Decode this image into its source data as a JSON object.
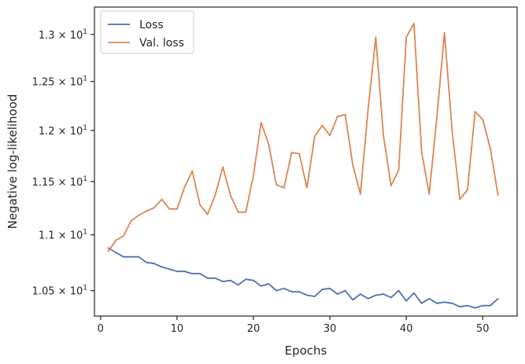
{
  "chart_data": {
    "type": "line",
    "xlabel": "Epochs",
    "ylabel": "Negative log-likelihood",
    "xlim": [
      -0.8,
      54.5
    ],
    "ylim": [
      10.28,
      13.3
    ],
    "y_scale": "log",
    "x_ticks": [
      0,
      10,
      20,
      30,
      40,
      50
    ],
    "x_tick_labels": [
      "0",
      "10",
      "20",
      "30",
      "40",
      "50"
    ],
    "y_ticks": [
      10.5,
      11.0,
      11.5,
      12.0,
      12.5,
      13.0
    ],
    "y_tick_labels": [
      {
        "mant": "1.05",
        "times": "×",
        "base": "10",
        "exp": "1"
      },
      {
        "mant": "1.1",
        "times": "×",
        "base": "10",
        "exp": "1"
      },
      {
        "mant": "1.15",
        "times": "×",
        "base": "10",
        "exp": "1"
      },
      {
        "mant": "1.2",
        "times": "×",
        "base": "10",
        "exp": "1"
      },
      {
        "mant": "1.25",
        "times": "×",
        "base": "10",
        "exp": "1"
      },
      {
        "mant": "1.3",
        "times": "×",
        "base": "10",
        "exp": "1"
      }
    ],
    "grid": false,
    "legend_position": "upper-left",
    "x": [
      1,
      2,
      3,
      4,
      5,
      6,
      7,
      8,
      9,
      10,
      11,
      12,
      13,
      14,
      15,
      16,
      17,
      18,
      19,
      20,
      21,
      22,
      23,
      24,
      25,
      26,
      27,
      28,
      29,
      30,
      31,
      32,
      33,
      34,
      35,
      36,
      37,
      38,
      39,
      40,
      41,
      42,
      43,
      44,
      45,
      46,
      47,
      48,
      49,
      50,
      51,
      52
    ],
    "series": [
      {
        "name": "Loss",
        "color": "#4c72b0",
        "values": [
          10.88,
          10.84,
          10.8,
          10.8,
          10.8,
          10.75,
          10.74,
          10.71,
          10.69,
          10.67,
          10.67,
          10.65,
          10.65,
          10.61,
          10.61,
          10.58,
          10.59,
          10.55,
          10.6,
          10.59,
          10.54,
          10.56,
          10.5,
          10.52,
          10.49,
          10.49,
          10.46,
          10.45,
          10.51,
          10.52,
          10.47,
          10.5,
          10.42,
          10.47,
          10.43,
          10.46,
          10.47,
          10.44,
          10.5,
          10.41,
          10.48,
          10.39,
          10.43,
          10.39,
          10.4,
          10.39,
          10.36,
          10.37,
          10.35,
          10.37,
          10.37,
          10.43
        ]
      },
      {
        "name": "Val. loss",
        "color": "#dd8452",
        "values": [
          10.85,
          10.95,
          10.99,
          11.13,
          11.18,
          11.22,
          11.25,
          11.33,
          11.24,
          11.24,
          11.45,
          11.6,
          11.28,
          11.19,
          11.37,
          11.64,
          11.37,
          11.21,
          11.21,
          11.56,
          12.08,
          11.86,
          11.47,
          11.44,
          11.78,
          11.77,
          11.44,
          11.94,
          12.05,
          11.95,
          12.14,
          12.16,
          11.66,
          11.38,
          12.21,
          12.97,
          11.95,
          11.46,
          11.61,
          12.97,
          13.12,
          11.79,
          11.38,
          12.13,
          13.02,
          11.99,
          11.33,
          11.42,
          12.19,
          12.11,
          11.82,
          11.37
        ]
      }
    ]
  }
}
